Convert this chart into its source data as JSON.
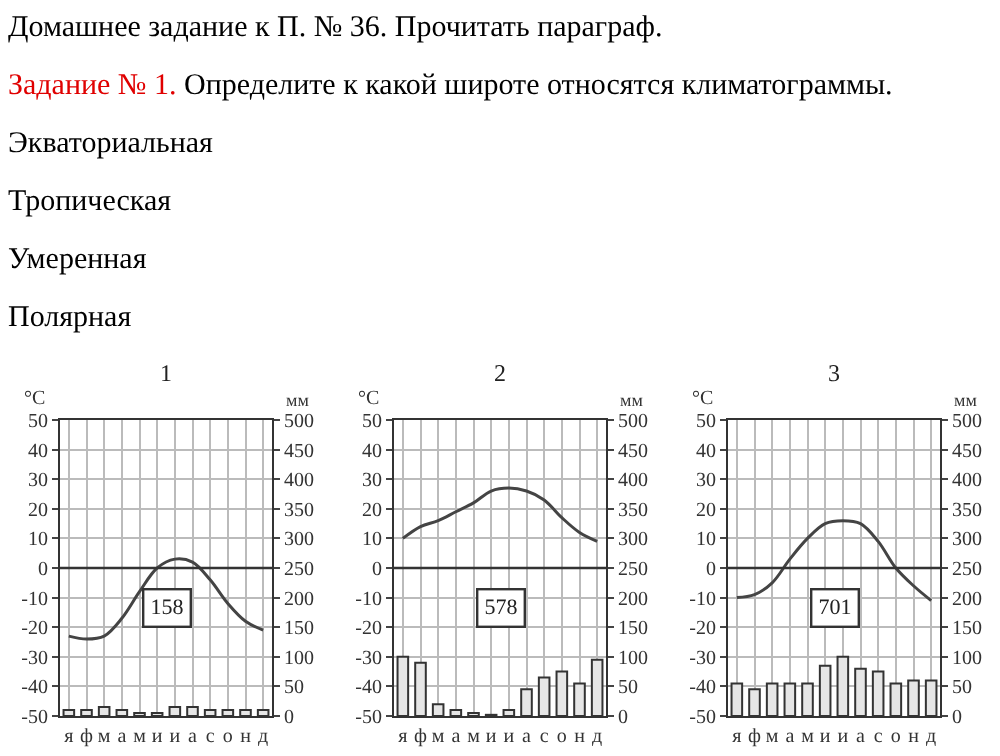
{
  "chart_data": [
    {
      "type": "other",
      "title": "Домашнее задание к П. № 36. Прочитать параграф.",
      "annotations": [
        {
          "text": "Задание № 1."
        },
        {
          "text": "Определите к какой широте относятся климатограммы."
        },
        {
          "text": "Экваториальная"
        },
        {
          "text": "Тропическая"
        },
        {
          "text": "Умеренная"
        },
        {
          "text": "Полярная"
        }
      ]
    },
    {
      "type": "bar",
      "title": "1",
      "ylabel": "°C",
      "y2label": "мм",
      "categories": [
        "я",
        "ф",
        "м",
        "а",
        "м",
        "и",
        "и",
        "а",
        "с",
        "о",
        "н",
        "д"
      ],
      "series": [
        {
          "type": "bar",
          "axis": "y2",
          "color": "#e6e6e6",
          "values": [
            10,
            10,
            15,
            10,
            5,
            5,
            15,
            15,
            10,
            10,
            10,
            10
          ]
        },
        {
          "type": "line",
          "color": "#444444",
          "values": [
            -23,
            -24,
            -23,
            -17,
            -8,
            0,
            3,
            2,
            -4,
            -12,
            -18,
            -21
          ]
        }
      ],
      "ylim": [
        -50,
        50
      ],
      "yticks": [
        -50,
        -40,
        -30,
        -20,
        -10,
        0,
        10,
        20,
        30,
        40,
        50
      ],
      "y2lim": [
        0,
        500
      ],
      "y2ticks": [
        0,
        50,
        100,
        150,
        200,
        250,
        300,
        350,
        400,
        450,
        500
      ],
      "ref_lines": [
        {
          "axis": "y",
          "value": 0
        }
      ],
      "annotations": [
        "158"
      ],
      "grid": true,
      "legend": false,
      "marker": "none"
    },
    {
      "type": "bar",
      "title": "2",
      "ylabel": "°C",
      "y2label": "мм",
      "categories": [
        "я",
        "ф",
        "м",
        "а",
        "м",
        "и",
        "и",
        "а",
        "с",
        "о",
        "н",
        "д"
      ],
      "series": [
        {
          "type": "bar",
          "axis": "y2",
          "color": "#e6e6e6",
          "values": [
            100,
            90,
            20,
            10,
            5,
            2,
            10,
            45,
            65,
            75,
            55,
            95
          ]
        },
        {
          "type": "line",
          "color": "#444444",
          "values": [
            10,
            14,
            16,
            19,
            22,
            26,
            27,
            26,
            23,
            17,
            12,
            9
          ]
        }
      ],
      "ylim": [
        -50,
        50
      ],
      "yticks": [
        -50,
        -40,
        -30,
        -20,
        -10,
        0,
        10,
        20,
        30,
        40,
        50
      ],
      "y2lim": [
        0,
        500
      ],
      "y2ticks": [
        0,
        50,
        100,
        150,
        200,
        250,
        300,
        350,
        400,
        450,
        500
      ],
      "ref_lines": [
        {
          "axis": "y",
          "value": 0
        }
      ],
      "annotations": [
        "578"
      ],
      "grid": true,
      "legend": false,
      "marker": "none"
    },
    {
      "type": "bar",
      "title": "3",
      "ylabel": "°C",
      "y2label": "мм",
      "categories": [
        "я",
        "ф",
        "м",
        "а",
        "м",
        "и",
        "и",
        "а",
        "с",
        "о",
        "н",
        "д"
      ],
      "series": [
        {
          "type": "bar",
          "axis": "y2",
          "color": "#e6e6e6",
          "values": [
            55,
            45,
            55,
            55,
            55,
            85,
            100,
            80,
            75,
            55,
            60,
            60
          ]
        },
        {
          "type": "line",
          "color": "#444444",
          "values": [
            -10,
            -9,
            -5,
            3,
            10,
            15,
            16,
            15,
            9,
            0,
            -6,
            -11
          ]
        }
      ],
      "ylim": [
        -50,
        50
      ],
      "yticks": [
        -50,
        -40,
        -30,
        -20,
        -10,
        0,
        10,
        20,
        30,
        40,
        50
      ],
      "y2lim": [
        0,
        500
      ],
      "y2ticks": [
        0,
        50,
        100,
        150,
        200,
        250,
        300,
        350,
        400,
        450,
        500
      ],
      "ref_lines": [
        {
          "axis": "y",
          "value": 0
        }
      ],
      "annotations": [
        "701"
      ],
      "grid": true,
      "legend": false,
      "marker": "none"
    }
  ]
}
